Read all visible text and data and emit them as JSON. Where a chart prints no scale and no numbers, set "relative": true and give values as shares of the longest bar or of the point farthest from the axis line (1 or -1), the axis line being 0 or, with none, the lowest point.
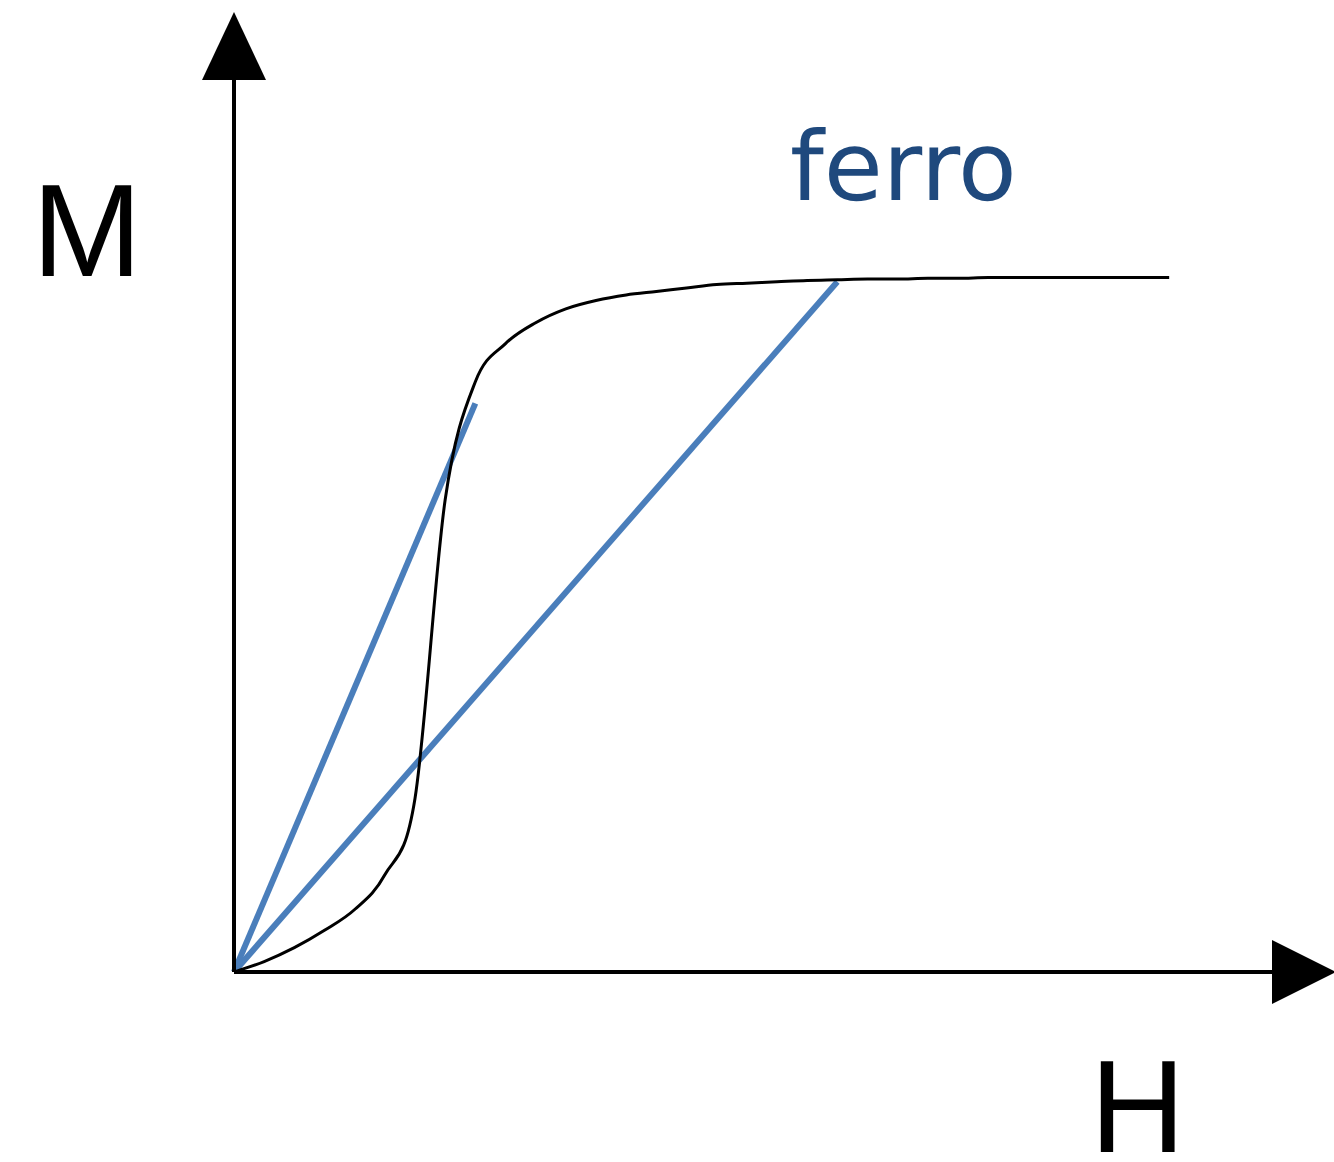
{
  "chart_data": {
    "type": "line",
    "relative": true,
    "xlabel": "H",
    "ylabel": "M",
    "annotations": [
      "ferro"
    ],
    "marker": "none",
    "line_style": "solid",
    "categories": [
      null,
      null,
      null,
      null,
      null,
      null,
      null,
      null,
      null,
      null,
      null,
      null,
      null,
      null,
      null,
      null,
      null,
      null,
      null,
      null,
      null,
      null,
      null,
      null,
      null,
      null,
      null,
      null,
      null,
      null,
      null,
      null,
      null,
      null,
      null,
      null,
      null
    ],
    "series": [
      {
        "color": "#000000",
        "values": [
          0,
          0.015,
          0.035,
          0.06,
          0.09,
          0.14,
          0.25,
          0.68,
          0.85,
          0.905,
          0.935,
          0.955,
          0.967,
          0.975,
          0.98,
          0.985,
          0.99,
          0.992,
          0.994,
          0.996,
          0.997,
          0.998,
          0.998,
          0.999,
          0.999,
          1,
          1,
          1,
          1,
          1,
          1,
          1,
          null,
          null,
          null,
          null,
          null
        ]
      },
      {
        "color": "#4a7ebb",
        "values": [
          0,
          null,
          null,
          null,
          null,
          null,
          null,
          null,
          0.819,
          null,
          null,
          null,
          null,
          null,
          null,
          null,
          null,
          null,
          null,
          null,
          null,
          null,
          null,
          null,
          null,
          null,
          null,
          null,
          null,
          null,
          null,
          null,
          null,
          null,
          null,
          null,
          null
        ]
      },
      {
        "color": "#4a7ebb",
        "values": [
          0,
          null,
          null,
          null,
          null,
          null,
          null,
          null,
          null,
          null,
          null,
          null,
          null,
          null,
          null,
          null,
          null,
          null,
          null,
          null,
          0.994,
          null,
          null,
          null,
          null,
          null,
          null,
          null,
          null,
          null,
          null,
          null,
          null,
          null,
          null,
          null,
          null
        ]
      }
    ]
  }
}
